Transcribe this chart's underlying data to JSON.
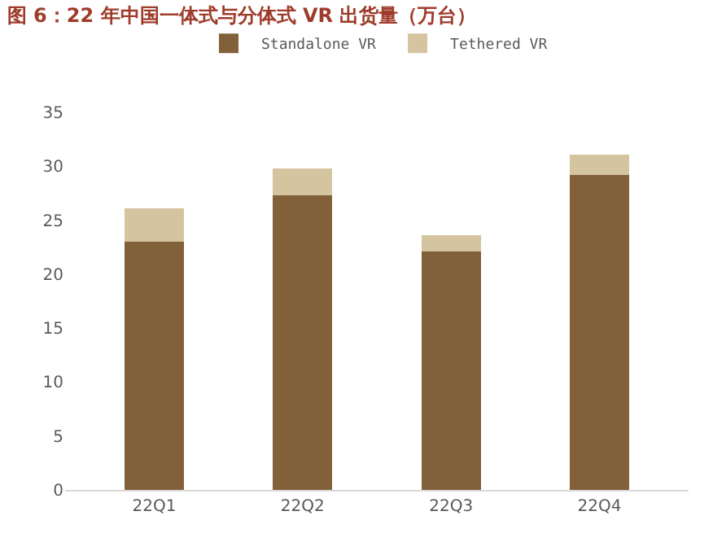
{
  "chart_data": {
    "type": "bar",
    "title": "图 6：22 年中国一体式与分体式 VR 出货量（万台）",
    "categories": [
      "22Q1",
      "22Q2",
      "22Q3",
      "22Q4"
    ],
    "series": [
      {
        "name": "Standalone VR",
        "color": "#82603a",
        "values": [
          23.0,
          27.3,
          22.1,
          29.2
        ]
      },
      {
        "name": "Tethered VR",
        "color": "#d4c4a0",
        "values": [
          3.1,
          2.5,
          1.5,
          1.9
        ]
      }
    ],
    "stacked": true,
    "ylim": [
      0,
      35
    ],
    "yticks": [
      0,
      5,
      10,
      15,
      20,
      25,
      30,
      35
    ],
    "legend": "top"
  }
}
